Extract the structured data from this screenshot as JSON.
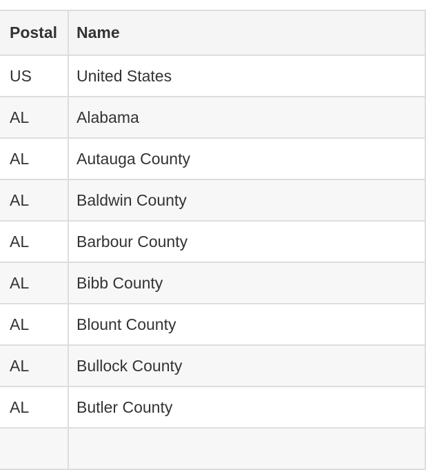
{
  "table": {
    "columns": {
      "postal": "Postal",
      "name": "Name"
    },
    "rows": [
      {
        "postal": "US",
        "name": "United States"
      },
      {
        "postal": "AL",
        "name": "Alabama"
      },
      {
        "postal": "AL",
        "name": "Autauga County"
      },
      {
        "postal": "AL",
        "name": "Baldwin County"
      },
      {
        "postal": "AL",
        "name": "Barbour County"
      },
      {
        "postal": "AL",
        "name": "Bibb County"
      },
      {
        "postal": "AL",
        "name": "Blount County"
      },
      {
        "postal": "AL",
        "name": "Bullock County"
      },
      {
        "postal": "AL",
        "name": "Butler County"
      },
      {
        "postal": "",
        "name": ""
      }
    ]
  }
}
